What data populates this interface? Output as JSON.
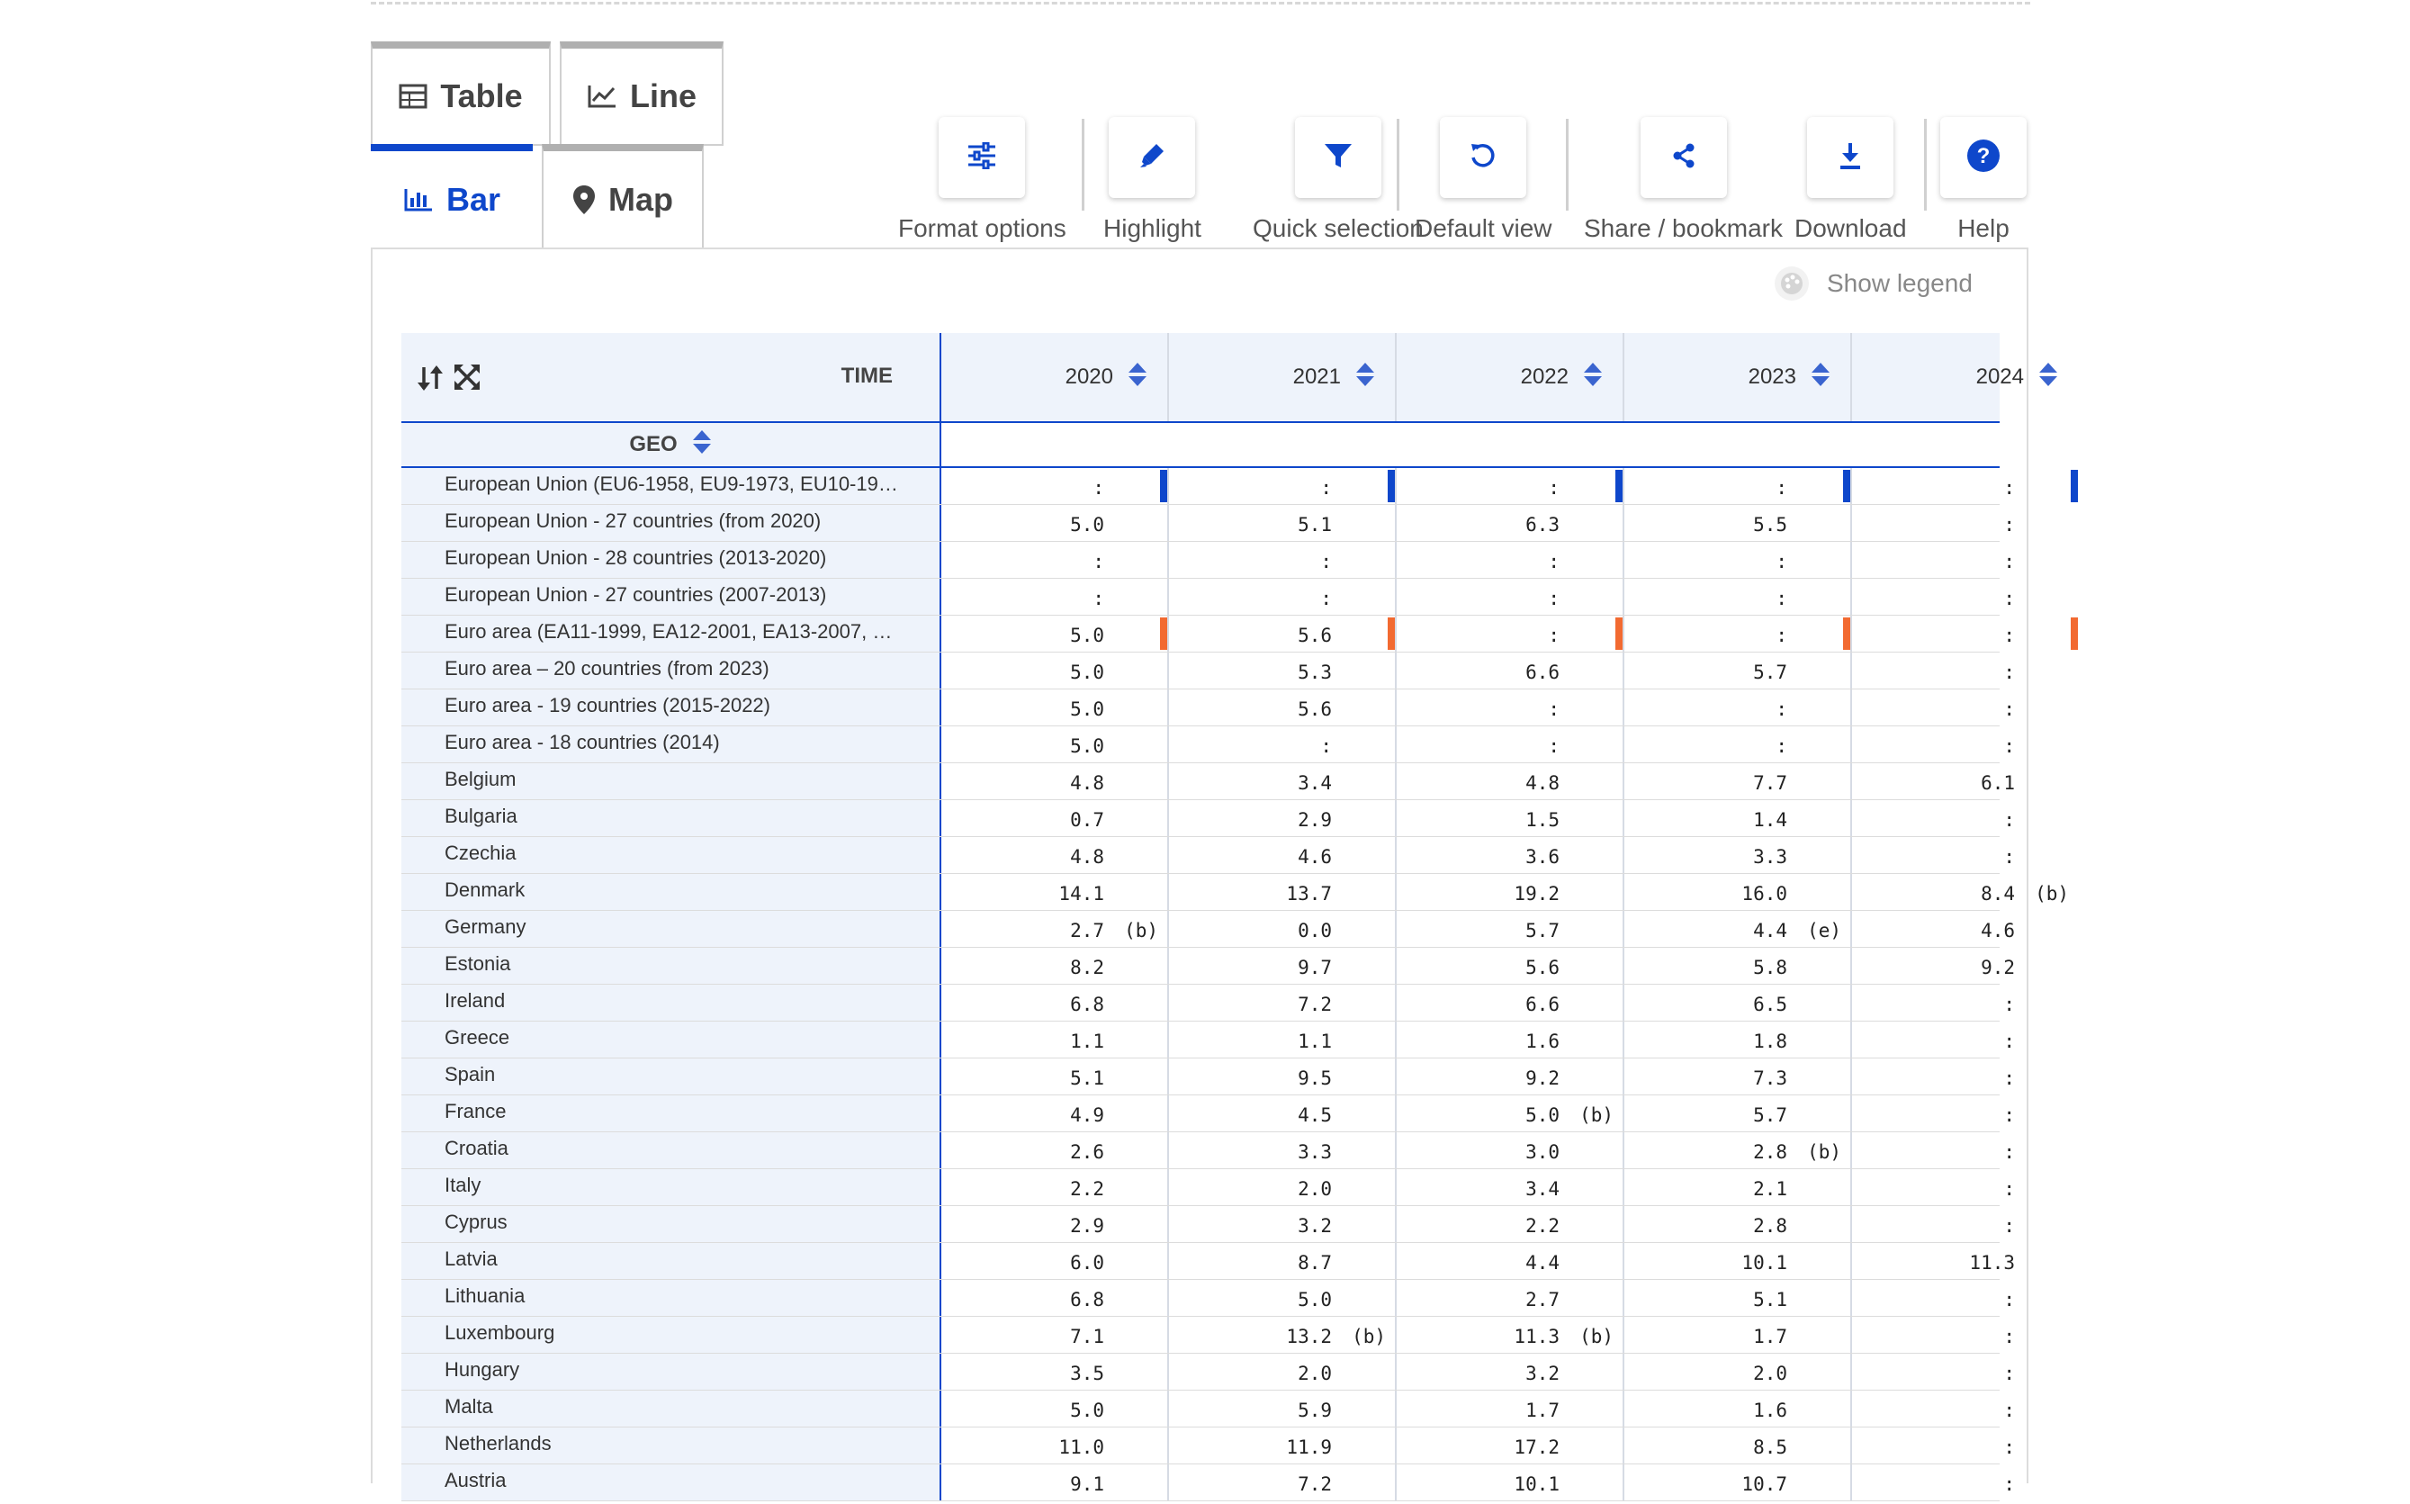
{
  "tabs": {
    "table": "Table",
    "line": "Line",
    "bar": "Bar",
    "map": "Map"
  },
  "toolbar": {
    "format_options": "Format options",
    "highlight": "Highlight",
    "quick_selection": "Quick selection",
    "default_view": "Default view",
    "share": "Share / bookmark",
    "download": "Download",
    "help": "Help"
  },
  "legend_toggle": "Show legend",
  "table": {
    "time_label": "TIME",
    "geo_label": "GEO",
    "years": [
      "2020",
      "2021",
      "2022",
      "2023",
      "2024"
    ],
    "highlight_colors": {
      "blue": "#0e47cb",
      "orange": "#f26a31"
    },
    "rows": [
      {
        "geo": "European Union (EU6-1958, EU9-1973, EU10-19…",
        "mark": "blue",
        "cells": [
          {
            "v": ":",
            "f": ""
          },
          {
            "v": ":",
            "f": ""
          },
          {
            "v": ":",
            "f": ""
          },
          {
            "v": ":",
            "f": ""
          },
          {
            "v": ":",
            "f": ""
          }
        ]
      },
      {
        "geo": "European Union - 27 countries (from 2020)",
        "mark": "",
        "cells": [
          {
            "v": "5.0",
            "f": ""
          },
          {
            "v": "5.1",
            "f": ""
          },
          {
            "v": "6.3",
            "f": ""
          },
          {
            "v": "5.5",
            "f": ""
          },
          {
            "v": ":",
            "f": ""
          }
        ]
      },
      {
        "geo": "European Union - 28 countries (2013-2020)",
        "mark": "",
        "cells": [
          {
            "v": ":",
            "f": ""
          },
          {
            "v": ":",
            "f": ""
          },
          {
            "v": ":",
            "f": ""
          },
          {
            "v": ":",
            "f": ""
          },
          {
            "v": ":",
            "f": ""
          }
        ]
      },
      {
        "geo": "European Union - 27 countries (2007-2013)",
        "mark": "",
        "cells": [
          {
            "v": ":",
            "f": ""
          },
          {
            "v": ":",
            "f": ""
          },
          {
            "v": ":",
            "f": ""
          },
          {
            "v": ":",
            "f": ""
          },
          {
            "v": ":",
            "f": ""
          }
        ]
      },
      {
        "geo": "Euro area (EA11-1999, EA12-2001, EA13-2007, …",
        "mark": "orange",
        "cells": [
          {
            "v": "5.0",
            "f": ""
          },
          {
            "v": "5.6",
            "f": ""
          },
          {
            "v": ":",
            "f": ""
          },
          {
            "v": ":",
            "f": ""
          },
          {
            "v": ":",
            "f": ""
          }
        ]
      },
      {
        "geo": "Euro area – 20 countries (from 2023)",
        "mark": "",
        "cells": [
          {
            "v": "5.0",
            "f": ""
          },
          {
            "v": "5.3",
            "f": ""
          },
          {
            "v": "6.6",
            "f": ""
          },
          {
            "v": "5.7",
            "f": ""
          },
          {
            "v": ":",
            "f": ""
          }
        ]
      },
      {
        "geo": "Euro area - 19 countries (2015-2022)",
        "mark": "",
        "cells": [
          {
            "v": "5.0",
            "f": ""
          },
          {
            "v": "5.6",
            "f": ""
          },
          {
            "v": ":",
            "f": ""
          },
          {
            "v": ":",
            "f": ""
          },
          {
            "v": ":",
            "f": ""
          }
        ]
      },
      {
        "geo": "Euro area - 18 countries (2014)",
        "mark": "",
        "cells": [
          {
            "v": "5.0",
            "f": ""
          },
          {
            "v": ":",
            "f": ""
          },
          {
            "v": ":",
            "f": ""
          },
          {
            "v": ":",
            "f": ""
          },
          {
            "v": ":",
            "f": ""
          }
        ]
      },
      {
        "geo": "Belgium",
        "mark": "",
        "cells": [
          {
            "v": "4.8",
            "f": ""
          },
          {
            "v": "3.4",
            "f": ""
          },
          {
            "v": "4.8",
            "f": ""
          },
          {
            "v": "7.7",
            "f": ""
          },
          {
            "v": "6.1",
            "f": ""
          }
        ]
      },
      {
        "geo": "Bulgaria",
        "mark": "",
        "cells": [
          {
            "v": "0.7",
            "f": ""
          },
          {
            "v": "2.9",
            "f": ""
          },
          {
            "v": "1.5",
            "f": ""
          },
          {
            "v": "1.4",
            "f": ""
          },
          {
            "v": ":",
            "f": ""
          }
        ]
      },
      {
        "geo": "Czechia",
        "mark": "",
        "cells": [
          {
            "v": "4.8",
            "f": ""
          },
          {
            "v": "4.6",
            "f": ""
          },
          {
            "v": "3.6",
            "f": ""
          },
          {
            "v": "3.3",
            "f": ""
          },
          {
            "v": ":",
            "f": ""
          }
        ]
      },
      {
        "geo": "Denmark",
        "mark": "",
        "cells": [
          {
            "v": "14.1",
            "f": ""
          },
          {
            "v": "13.7",
            "f": ""
          },
          {
            "v": "19.2",
            "f": ""
          },
          {
            "v": "16.0",
            "f": ""
          },
          {
            "v": "8.4",
            "f": "(b)"
          }
        ]
      },
      {
        "geo": "Germany",
        "mark": "",
        "cells": [
          {
            "v": "2.7",
            "f": "(b)"
          },
          {
            "v": "0.0",
            "f": ""
          },
          {
            "v": "5.7",
            "f": ""
          },
          {
            "v": "4.4",
            "f": "(e)"
          },
          {
            "v": "4.6",
            "f": ""
          }
        ]
      },
      {
        "geo": "Estonia",
        "mark": "",
        "cells": [
          {
            "v": "8.2",
            "f": ""
          },
          {
            "v": "9.7",
            "f": ""
          },
          {
            "v": "5.6",
            "f": ""
          },
          {
            "v": "5.8",
            "f": ""
          },
          {
            "v": "9.2",
            "f": ""
          }
        ]
      },
      {
        "geo": "Ireland",
        "mark": "",
        "cells": [
          {
            "v": "6.8",
            "f": ""
          },
          {
            "v": "7.2",
            "f": ""
          },
          {
            "v": "6.6",
            "f": ""
          },
          {
            "v": "6.5",
            "f": ""
          },
          {
            "v": ":",
            "f": ""
          }
        ]
      },
      {
        "geo": "Greece",
        "mark": "",
        "cells": [
          {
            "v": "1.1",
            "f": ""
          },
          {
            "v": "1.1",
            "f": ""
          },
          {
            "v": "1.6",
            "f": ""
          },
          {
            "v": "1.8",
            "f": ""
          },
          {
            "v": ":",
            "f": ""
          }
        ]
      },
      {
        "geo": "Spain",
        "mark": "",
        "cells": [
          {
            "v": "5.1",
            "f": ""
          },
          {
            "v": "9.5",
            "f": ""
          },
          {
            "v": "9.2",
            "f": ""
          },
          {
            "v": "7.3",
            "f": ""
          },
          {
            "v": ":",
            "f": ""
          }
        ]
      },
      {
        "geo": "France",
        "mark": "",
        "cells": [
          {
            "v": "4.9",
            "f": ""
          },
          {
            "v": "4.5",
            "f": ""
          },
          {
            "v": "5.0",
            "f": "(b)"
          },
          {
            "v": "5.7",
            "f": ""
          },
          {
            "v": ":",
            "f": ""
          }
        ]
      },
      {
        "geo": "Croatia",
        "mark": "",
        "cells": [
          {
            "v": "2.6",
            "f": ""
          },
          {
            "v": "3.3",
            "f": ""
          },
          {
            "v": "3.0",
            "f": ""
          },
          {
            "v": "2.8",
            "f": "(b)"
          },
          {
            "v": ":",
            "f": ""
          }
        ]
      },
      {
        "geo": "Italy",
        "mark": "",
        "cells": [
          {
            "v": "2.2",
            "f": ""
          },
          {
            "v": "2.0",
            "f": ""
          },
          {
            "v": "3.4",
            "f": ""
          },
          {
            "v": "2.1",
            "f": ""
          },
          {
            "v": ":",
            "f": ""
          }
        ]
      },
      {
        "geo": "Cyprus",
        "mark": "",
        "cells": [
          {
            "v": "2.9",
            "f": ""
          },
          {
            "v": "3.2",
            "f": ""
          },
          {
            "v": "2.2",
            "f": ""
          },
          {
            "v": "2.8",
            "f": ""
          },
          {
            "v": ":",
            "f": ""
          }
        ]
      },
      {
        "geo": "Latvia",
        "mark": "",
        "cells": [
          {
            "v": "6.0",
            "f": ""
          },
          {
            "v": "8.7",
            "f": ""
          },
          {
            "v": "4.4",
            "f": ""
          },
          {
            "v": "10.1",
            "f": ""
          },
          {
            "v": "11.3",
            "f": ""
          }
        ]
      },
      {
        "geo": "Lithuania",
        "mark": "",
        "cells": [
          {
            "v": "6.8",
            "f": ""
          },
          {
            "v": "5.0",
            "f": ""
          },
          {
            "v": "2.7",
            "f": ""
          },
          {
            "v": "5.1",
            "f": ""
          },
          {
            "v": ":",
            "f": ""
          }
        ]
      },
      {
        "geo": "Luxembourg",
        "mark": "",
        "cells": [
          {
            "v": "7.1",
            "f": ""
          },
          {
            "v": "13.2",
            "f": "(b)"
          },
          {
            "v": "11.3",
            "f": "(b)"
          },
          {
            "v": "1.7",
            "f": ""
          },
          {
            "v": ":",
            "f": ""
          }
        ]
      },
      {
        "geo": "Hungary",
        "mark": "",
        "cells": [
          {
            "v": "3.5",
            "f": ""
          },
          {
            "v": "2.0",
            "f": ""
          },
          {
            "v": "3.2",
            "f": ""
          },
          {
            "v": "2.0",
            "f": ""
          },
          {
            "v": ":",
            "f": ""
          }
        ]
      },
      {
        "geo": "Malta",
        "mark": "",
        "cells": [
          {
            "v": "5.0",
            "f": ""
          },
          {
            "v": "5.9",
            "f": ""
          },
          {
            "v": "1.7",
            "f": ""
          },
          {
            "v": "1.6",
            "f": ""
          },
          {
            "v": ":",
            "f": ""
          }
        ]
      },
      {
        "geo": "Netherlands",
        "mark": "",
        "cells": [
          {
            "v": "11.0",
            "f": ""
          },
          {
            "v": "11.9",
            "f": ""
          },
          {
            "v": "17.2",
            "f": ""
          },
          {
            "v": "8.5",
            "f": ""
          },
          {
            "v": ":",
            "f": ""
          }
        ]
      },
      {
        "geo": "Austria",
        "mark": "",
        "cells": [
          {
            "v": "9.1",
            "f": ""
          },
          {
            "v": "7.2",
            "f": ""
          },
          {
            "v": "10.1",
            "f": ""
          },
          {
            "v": "10.7",
            "f": ""
          },
          {
            "v": ":",
            "f": ""
          }
        ]
      }
    ]
  }
}
